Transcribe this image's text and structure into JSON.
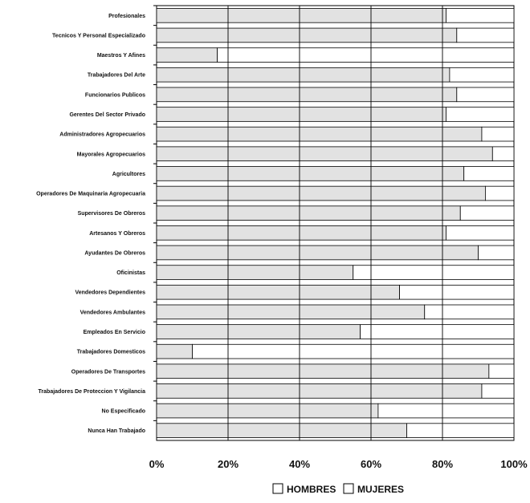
{
  "chart_data": {
    "type": "bar",
    "orientation": "horizontal",
    "stacked": true,
    "normalized": true,
    "categories": [
      "Profesionales",
      "Tecnicos Y Personal Especializado",
      "Maestros Y Afines",
      "Trabajadores Del Arte",
      "Funcionarios Publicos",
      "Gerentes Del Sector Privado",
      "Administradores Agropecuarios",
      "Mayorales Agropecuarios",
      "Agricultores",
      "Operadores De Maquinaria Agropecuaria",
      "Supervisores De Obreros",
      "Artesanos Y Obreros",
      "Ayudantes De Obreros",
      "Oficinistas",
      "Vendedores Dependientes",
      "Vendedores Ambulantes",
      "Empleados En Servicio",
      "Trabajadores Domesticos",
      "Operadores De Transportes",
      "Trabajadores De Proteccion Y Vigilancia",
      "No Especificado",
      "Nunca Han Trabajado"
    ],
    "series": [
      {
        "name": "HOMBRES",
        "values": [
          81,
          84,
          17,
          82,
          84,
          81,
          91,
          94,
          86,
          92,
          85,
          81,
          90,
          55,
          68,
          75,
          57,
          10,
          93,
          91,
          62,
          70
        ]
      },
      {
        "name": "MUJERES",
        "values": [
          19,
          16,
          83,
          18,
          16,
          19,
          9,
          6,
          14,
          8,
          15,
          19,
          10,
          45,
          32,
          25,
          43,
          90,
          7,
          9,
          38,
          30
        ]
      }
    ],
    "x_ticks": [
      "0%",
      "20%",
      "40%",
      "60%",
      "80%",
      "100%"
    ],
    "xlim": [
      0,
      100
    ],
    "grid": true,
    "legend": "bottom",
    "colors": {
      "hombres": "#e2e2e2",
      "mujeres": "#ffffff",
      "stroke": "#000000",
      "grid": "#000000"
    }
  }
}
